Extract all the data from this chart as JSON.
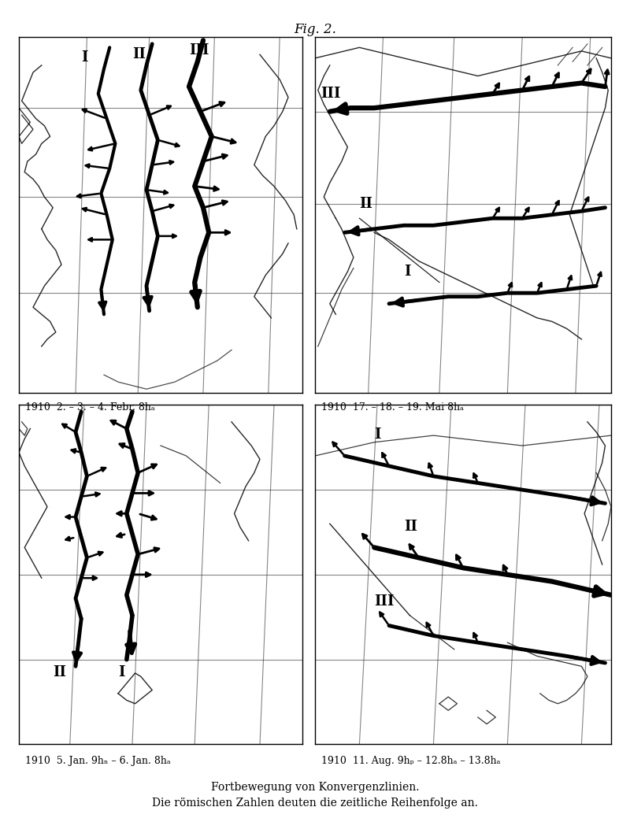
{
  "fig_title": "Fig. 2.",
  "caption_line1": "Fortbewegung von Konvergenzlinien.",
  "caption_line2": "Die römischen Zahlen deuten die zeitliche Reihenfolge an.",
  "label_tl": "1910  2. – 3. – 4. Febr. 8hₐ",
  "label_tr": "1910  17. – 18. – 19. Mai 8hₐ",
  "label_bl": "1910  5. Jan. 9hₙ – 6. Jan. 8hₐ",
  "label_br": "1910  11. Aug. 9hₚ – 12.8hₐ – 13.8hₐ",
  "bg_color": "#ffffff",
  "line_color": "#000000"
}
